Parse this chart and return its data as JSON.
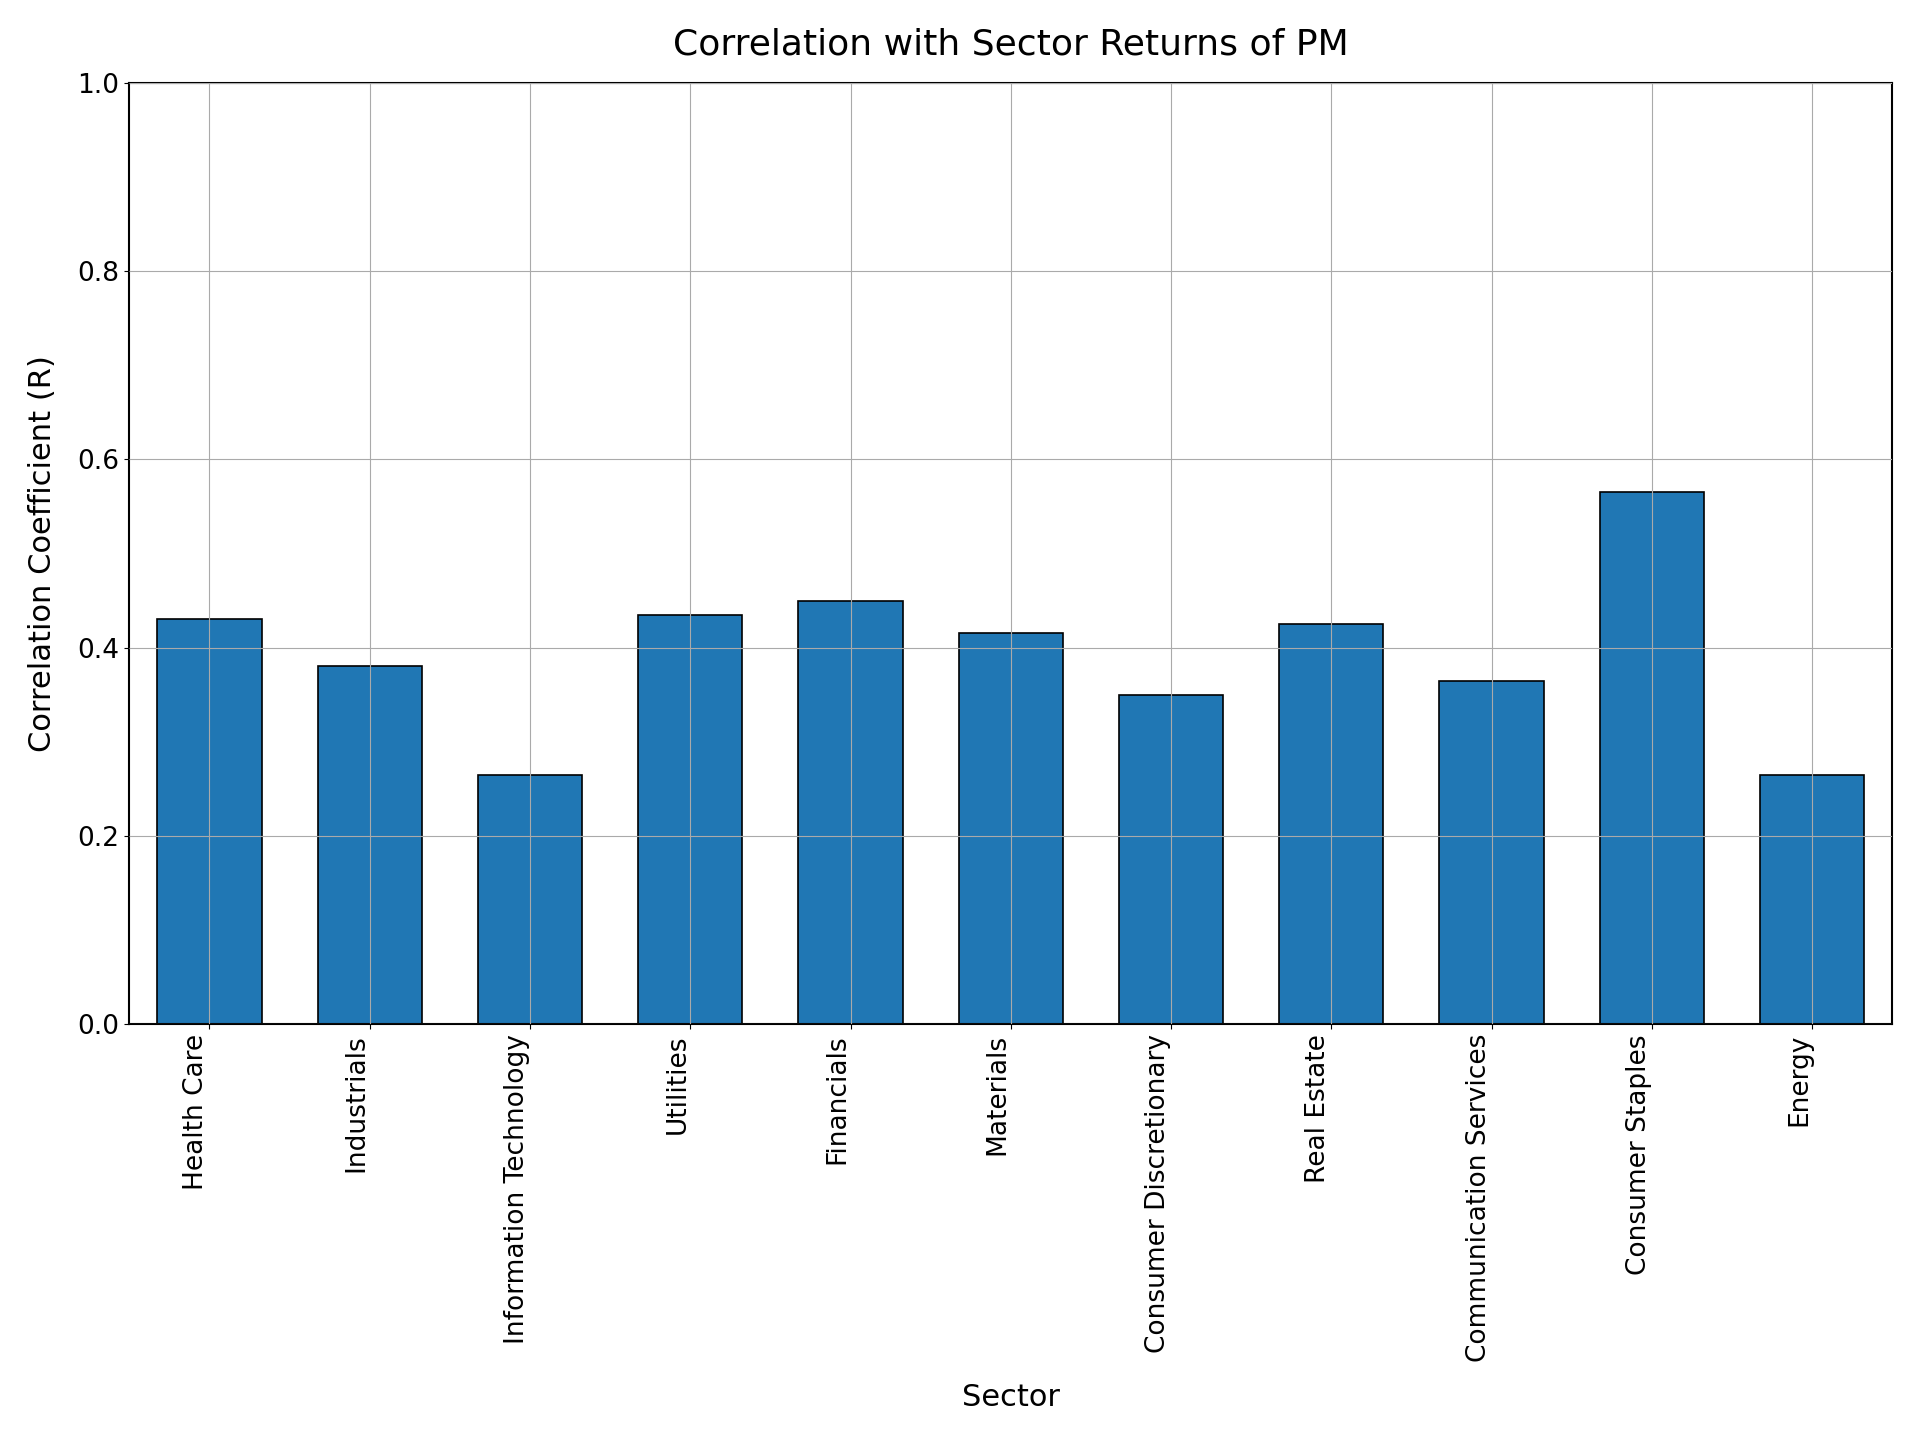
{
  "title": "Correlation with Sector Returns of PM",
  "xlabel": "Sector",
  "ylabel": "Correlation Coefficient (R)",
  "categories": [
    "Health Care",
    "Industrials",
    "Information Technology",
    "Utilities",
    "Financials",
    "Materials",
    "Consumer Discretionary",
    "Real Estate",
    "Communication Services",
    "Consumer Staples",
    "Energy"
  ],
  "values": [
    0.43,
    0.38,
    0.265,
    0.435,
    0.45,
    0.415,
    0.35,
    0.425,
    0.365,
    0.565,
    0.265
  ],
  "bar_color": "#2077b4",
  "ylim": [
    0.0,
    1.0
  ],
  "yticks": [
    0.0,
    0.2,
    0.4,
    0.6,
    0.8,
    1.0
  ],
  "title_fontsize": 26,
  "label_fontsize": 22,
  "tick_fontsize": 19,
  "background_color": "#ffffff",
  "grid": true,
  "bar_width": 0.65,
  "grid_color": "#aaaaaa",
  "grid_linewidth": 0.8,
  "xlabel_rotation": 90,
  "bar_edgecolor": "black",
  "bar_edgewidth": 1.2
}
